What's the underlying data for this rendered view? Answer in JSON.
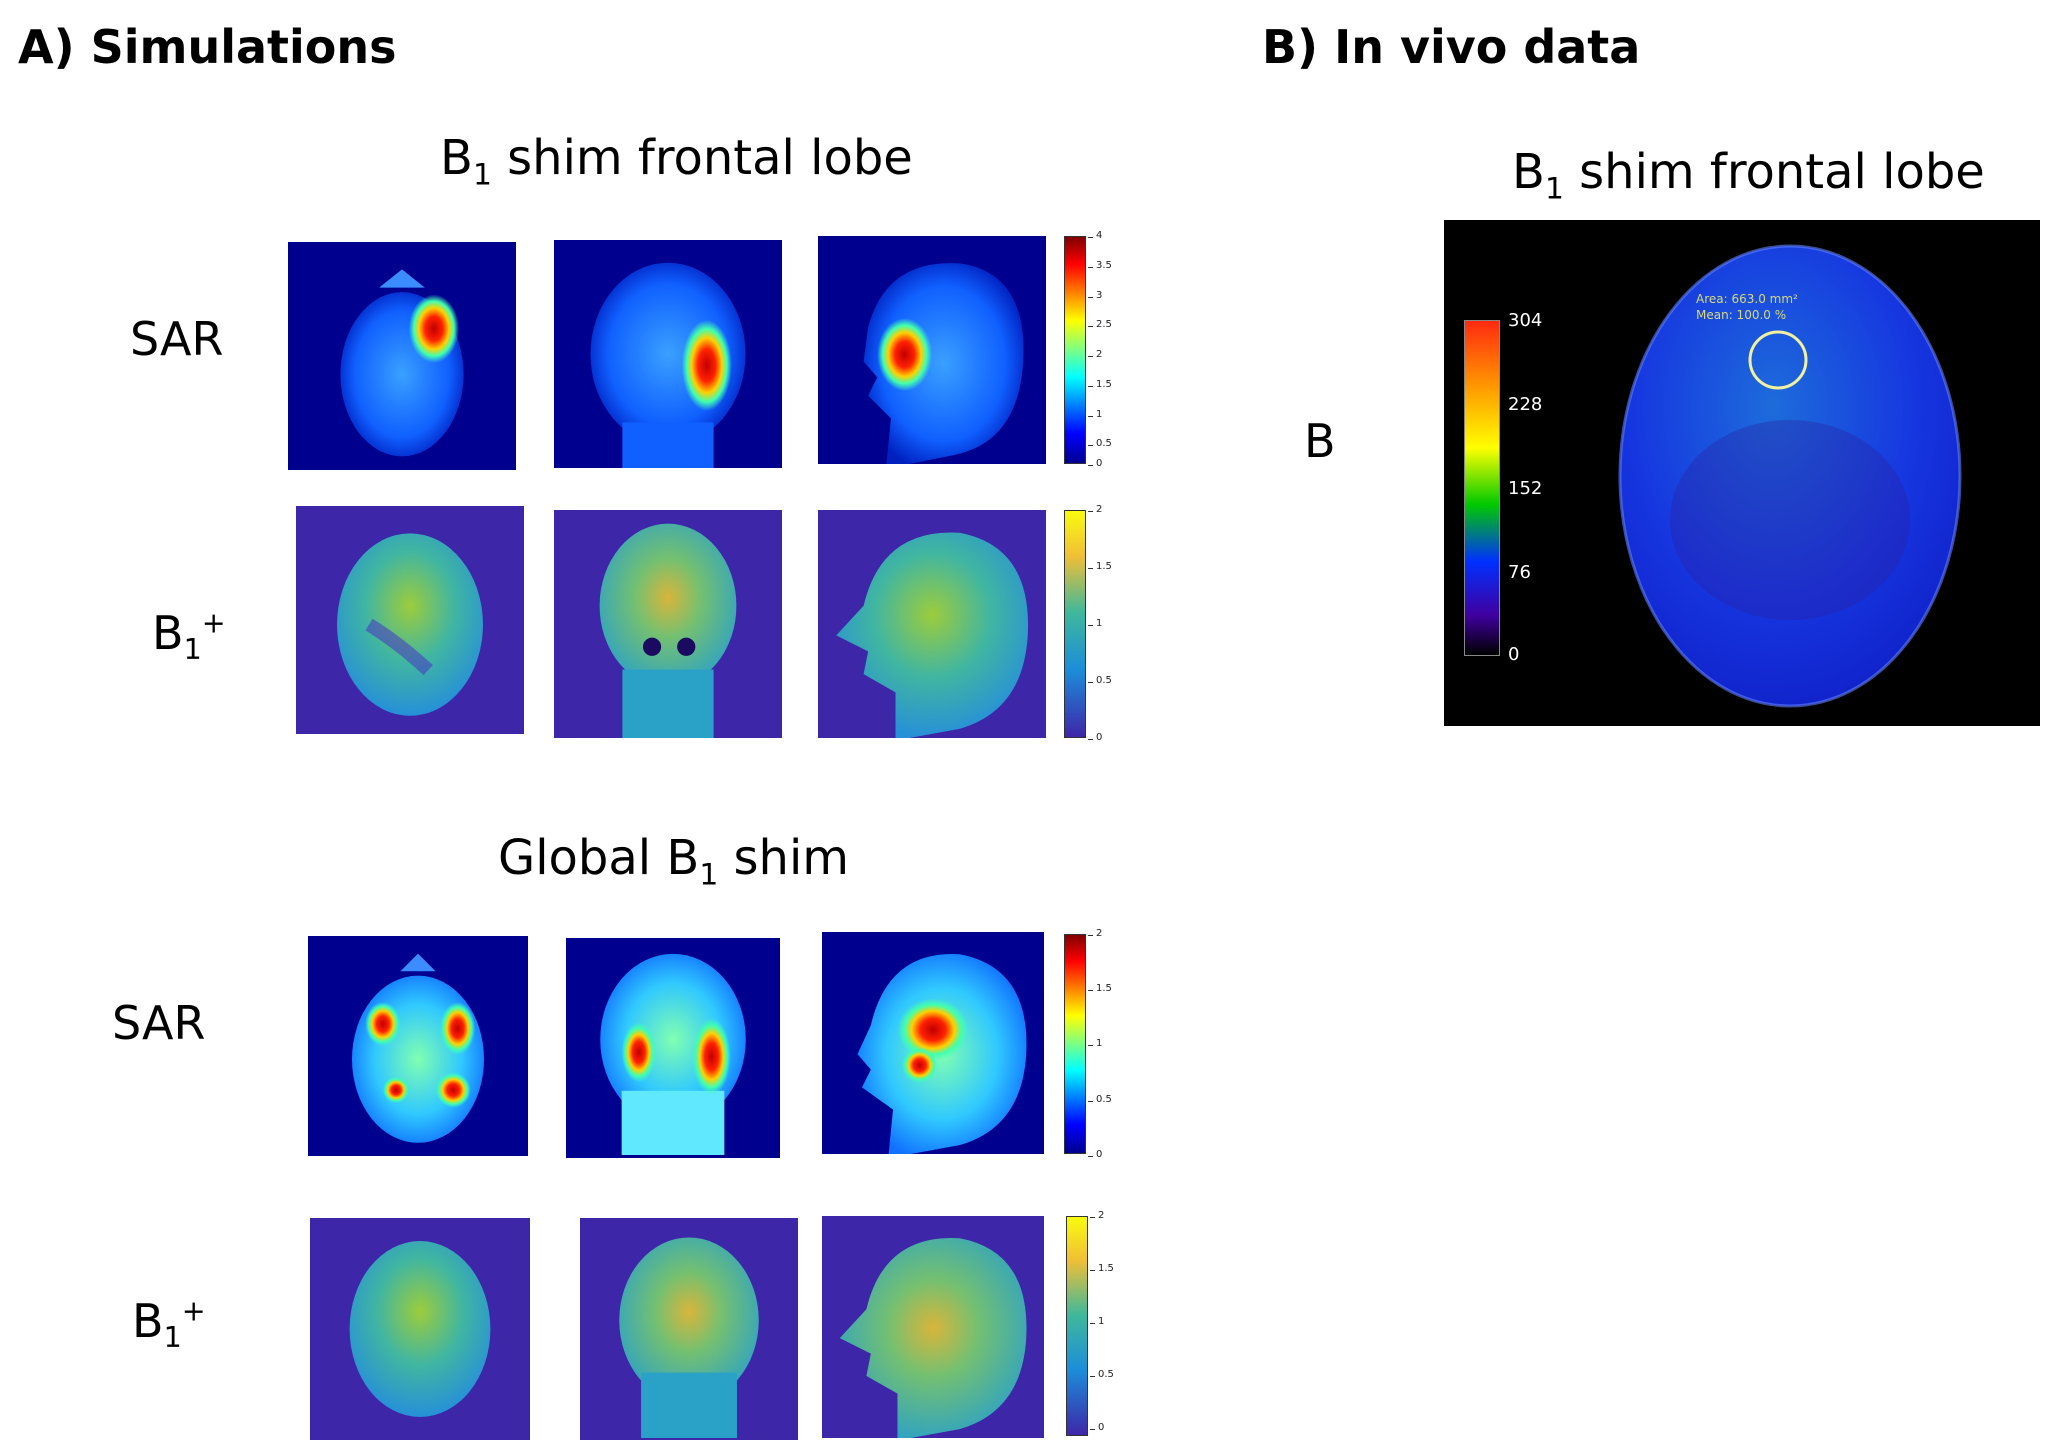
{
  "panel_a": {
    "title": "A) Simulations",
    "sections": [
      {
        "title_main": "B",
        "title_sub": "1",
        "title_rest": " shim frontal lobe",
        "rows": [
          {
            "label_main": "SAR",
            "label_sub": "",
            "label_sup": "",
            "colormap": "jet",
            "colorbar_ticks": [
              "4",
              "3.5",
              "3",
              "2.5",
              "2",
              "1.5",
              "1",
              "0.5",
              "0"
            ]
          },
          {
            "label_main": "B",
            "label_sub": "1",
            "label_sup": "+",
            "colormap": "parula",
            "colorbar_ticks": [
              "2",
              "1.5",
              "1",
              "0.5",
              "0"
            ]
          }
        ]
      },
      {
        "title_main": "Global B",
        "title_sub": "1",
        "title_rest": " shim",
        "rows": [
          {
            "label_main": "SAR",
            "label_sub": "",
            "label_sup": "",
            "colormap": "jet",
            "colorbar_ticks": [
              "2",
              "1.5",
              "1",
              "0.5",
              "0"
            ]
          },
          {
            "label_main": "B",
            "label_sub": "1",
            "label_sup": "+",
            "colormap": "parula",
            "colorbar_ticks": [
              "2",
              "1.5",
              "1",
              "0.5",
              "0"
            ]
          }
        ]
      }
    ]
  },
  "panel_b": {
    "title": "B) In vivo data",
    "section_title_main": "B",
    "section_title_sub": "1",
    "section_title_rest": " shim frontal lobe",
    "side_label": "B",
    "roi_area": "Area: 663.0 mm²",
    "roi_mean": "Mean: 100.0 %",
    "colorbar_ticks": [
      "304",
      "228",
      "152",
      "76",
      "0"
    ]
  },
  "colors": {
    "jet_background": "#00008f",
    "parula_background": "#3e26a8",
    "invivo_background": "#000000"
  }
}
